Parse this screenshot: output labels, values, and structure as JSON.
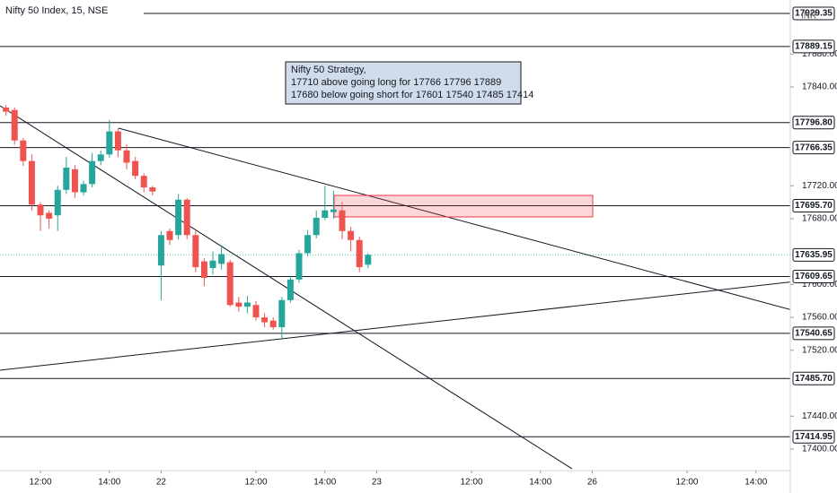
{
  "chart_data": {
    "type": "candlestick",
    "title": "Nifty 50 Index, 15, NSE",
    "currency": "INR",
    "annotation": [
      "Nifty 50 Strategy,",
      "17710 above going long for 17766 17796 17889",
      "17680 below going short for 17601 17540 17485 17414"
    ],
    "open": [
      17815,
      17812,
      17775,
      17750,
      17697,
      17687,
      17684,
      17715,
      17740,
      17712,
      17722,
      17750,
      17758,
      17786,
      17763,
      17750,
      17732,
      17718,
      17623,
      17665,
      17660,
      17703,
      17660,
      17628,
      17620,
      17625,
      17627,
      17578,
      17573,
      17575,
      17560,
      17556,
      17548,
      17581,
      17606,
      17638,
      17660,
      17681,
      17688,
      17690,
      17665,
      17654,
      17624
    ],
    "high": [
      17818,
      17815,
      17778,
      17758,
      17700,
      17690,
      17720,
      17755,
      17745,
      17726,
      17760,
      17763,
      17800,
      17790,
      17770,
      17755,
      17735,
      17720,
      17665,
      17668,
      17710,
      17705,
      17665,
      17632,
      17640,
      17648,
      17630,
      17585,
      17586,
      17580,
      17565,
      17560,
      17585,
      17610,
      17642,
      17666,
      17690,
      17720,
      17714,
      17700,
      17670,
      17658,
      17638
    ],
    "low": [
      17805,
      17770,
      17744,
      17690,
      17665,
      17668,
      17665,
      17710,
      17705,
      17708,
      17718,
      17745,
      17754,
      17755,
      17740,
      17728,
      17712,
      17708,
      17581,
      17648,
      17655,
      17655,
      17615,
      17598,
      17612,
      17618,
      17573,
      17567,
      17565,
      17556,
      17548,
      17545,
      17534,
      17578,
      17602,
      17634,
      17656,
      17678,
      17680,
      17655,
      17640,
      17615,
      17620
    ],
    "close": [
      17810,
      17775,
      17750,
      17697,
      17684,
      17680,
      17715,
      17742,
      17712,
      17722,
      17750,
      17758,
      17786,
      17763,
      17748,
      17732,
      17718,
      17713,
      17660,
      17654,
      17703,
      17660,
      17621,
      17608,
      17629,
      17637,
      17575,
      17573,
      17578,
      17560,
      17554,
      17548,
      17581,
      17606,
      17638,
      17660,
      17681,
      17690,
      17691,
      17665,
      17654,
      17621,
      17636
    ],
    "up_color": "#26a69a",
    "down_color": "#ef5350",
    "last_price": 17635.95,
    "levels": [
      {
        "value": 17929.35,
        "label": "17929.35"
      },
      {
        "value": 17889.15,
        "label": "17889.15"
      },
      {
        "value": 17796.8,
        "label": "17796.80"
      },
      {
        "value": 17766.35,
        "label": "17766.35"
      },
      {
        "value": 17695.7,
        "label": "17695.70"
      },
      {
        "value": 17609.65,
        "label": "17609.65"
      },
      {
        "value": 17540.65,
        "label": "17540.65"
      },
      {
        "value": 17485.7,
        "label": "17485.70"
      },
      {
        "value": 17414.95,
        "label": "17414.95"
      }
    ],
    "ylim": [
      17373.8,
      17945.7
    ],
    "yticks": [
      {
        "value": 17880,
        "label": "17880.00"
      },
      {
        "value": 17840,
        "label": "17840.00"
      },
      {
        "value": 17720,
        "label": "17720.00"
      },
      {
        "value": 17680,
        "label": "17680.00"
      },
      {
        "value": 17600,
        "label": "17600.00"
      },
      {
        "value": 17560,
        "label": "17560.00"
      },
      {
        "value": 17520,
        "label": "17520.00"
      },
      {
        "value": 17440,
        "label": "17440.00"
      },
      {
        "value": 17400,
        "label": "17400.00"
      }
    ],
    "xlim": [
      -0.69,
      90.98
    ],
    "xticks": [
      {
        "value": 4,
        "label": "12:00"
      },
      {
        "value": 12,
        "label": "14:00"
      },
      {
        "value": 18,
        "label": "22"
      },
      {
        "value": 29,
        "label": "12:00"
      },
      {
        "value": 37,
        "label": "14:00"
      },
      {
        "value": 43,
        "label": "23"
      },
      {
        "value": 54,
        "label": "12:00"
      },
      {
        "value": 62,
        "label": "14:00"
      },
      {
        "value": 68,
        "label": "26"
      },
      {
        "value": 79,
        "label": "12:00"
      },
      {
        "value": 87,
        "label": "14:00"
      }
    ],
    "grid": false
  }
}
